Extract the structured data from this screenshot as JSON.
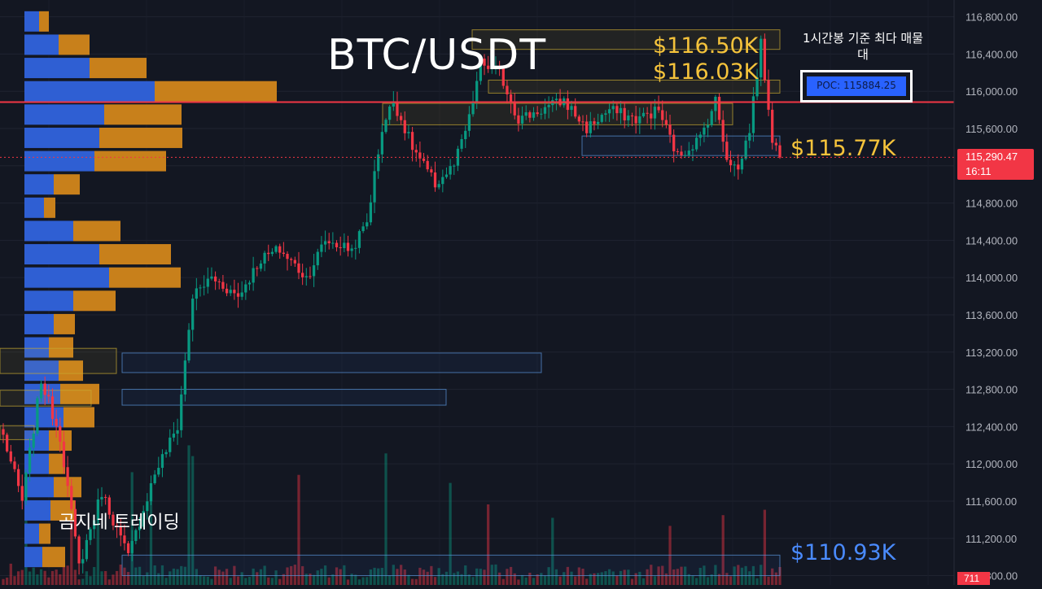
{
  "chart_data": {
    "type": "candlestick",
    "title": "BTC/USDT",
    "timeframe_note": "1시간봉 기준 최다 매물대",
    "y_axis": {
      "ticks": [
        110800,
        111200,
        111600,
        112000,
        112400,
        112800,
        113200,
        113600,
        114000,
        114400,
        114800,
        115200,
        115600,
        116000,
        116400,
        116800
      ],
      "tick_labels": [
        "110,800.00",
        "111,200.00",
        "111,600.00",
        "112,000.00",
        "112,400.00",
        "112,800.00",
        "113,200.00",
        "113,600.00",
        "114,000.00",
        "114,400.00",
        "114,800.00",
        "115,200.00",
        "115,600.00",
        "116,000.00",
        "116,400.00",
        "116,800.00"
      ],
      "range": [
        110700,
        116980
      ]
    },
    "current_price": {
      "label": "115,290.47",
      "value": 115290.47,
      "countdown": "16:11",
      "color": "#f23645"
    },
    "volume_last": "711",
    "poc": {
      "label": "POC: 115884.25",
      "value": 115884.25,
      "color": "#f23645"
    },
    "levels": [
      {
        "label": "$116.50K",
        "value": 116500,
        "color": "#f5c33b"
      },
      {
        "label": "$116.03K",
        "value": 116030,
        "color": "#f5c33b"
      },
      {
        "label": "$115.77K",
        "value": 115770,
        "color": "#f5c33b"
      },
      {
        "label": "$110.93K",
        "value": 110930,
        "color": "#4a8bff"
      }
    ],
    "zones": [
      {
        "kind": "resistance",
        "from": 116450,
        "to": 116660,
        "color": "#f5c33b"
      },
      {
        "kind": "resistance",
        "from": 115980,
        "to": 116120,
        "color": "#f5c33b"
      },
      {
        "kind": "resistance",
        "from": 115640,
        "to": 115870,
        "color": "#f5c33b"
      },
      {
        "kind": "support",
        "from": 115310,
        "to": 115520,
        "color": "#4a8bff"
      },
      {
        "kind": "support",
        "from": 112980,
        "to": 113190,
        "color": "#4a8bff"
      },
      {
        "kind": "support",
        "from": 112630,
        "to": 112800,
        "color": "#4a8bff"
      },
      {
        "kind": "support",
        "from": 110800,
        "to": 111020,
        "color": "#4a8bff"
      },
      {
        "kind": "resistance",
        "from": 112970,
        "to": 113240,
        "color": "#f5c33b"
      },
      {
        "kind": "resistance",
        "from": 112620,
        "to": 112790,
        "color": "#f5c33b"
      },
      {
        "kind": "resistance",
        "from": 112260,
        "to": 112410,
        "color": "#f5c33b"
      }
    ],
    "volume_profile": [
      {
        "price": 116750,
        "up": 18,
        "down": 12
      },
      {
        "price": 116500,
        "up": 42,
        "down": 38
      },
      {
        "price": 116250,
        "up": 80,
        "down": 70
      },
      {
        "price": 116000,
        "up": 160,
        "down": 150
      },
      {
        "price": 115750,
        "up": 98,
        "down": 95
      },
      {
        "price": 115500,
        "up": 92,
        "down": 102
      },
      {
        "price": 115250,
        "up": 86,
        "down": 88
      },
      {
        "price": 115000,
        "up": 36,
        "down": 32
      },
      {
        "price": 114750,
        "up": 24,
        "down": 14
      },
      {
        "price": 114500,
        "up": 60,
        "down": 58
      },
      {
        "price": 114250,
        "up": 92,
        "down": 88
      },
      {
        "price": 114000,
        "up": 104,
        "down": 88
      },
      {
        "price": 113750,
        "up": 60,
        "down": 52
      },
      {
        "price": 113500,
        "up": 36,
        "down": 26
      },
      {
        "price": 113250,
        "up": 30,
        "down": 30
      },
      {
        "price": 113000,
        "up": 42,
        "down": 30
      },
      {
        "price": 112750,
        "up": 44,
        "down": 48
      },
      {
        "price": 112500,
        "up": 48,
        "down": 38
      },
      {
        "price": 112250,
        "up": 30,
        "down": 28
      },
      {
        "price": 112000,
        "up": 30,
        "down": 20
      },
      {
        "price": 111750,
        "up": 36,
        "down": 34
      },
      {
        "price": 111500,
        "up": 32,
        "down": 30
      },
      {
        "price": 111250,
        "up": 18,
        "down": 14
      },
      {
        "price": 111000,
        "up": 22,
        "down": 28
      }
    ],
    "anchors": [
      [
        0,
        112300
      ],
      [
        5,
        111600
      ],
      [
        10,
        112900
      ],
      [
        15,
        112300
      ],
      [
        20,
        110900
      ],
      [
        26,
        111700
      ],
      [
        33,
        111000
      ],
      [
        40,
        111900
      ],
      [
        46,
        112400
      ],
      [
        50,
        113800
      ],
      [
        55,
        114000
      ],
      [
        62,
        113800
      ],
      [
        68,
        114200
      ],
      [
        73,
        114300
      ],
      [
        80,
        114000
      ],
      [
        85,
        114400
      ],
      [
        92,
        114300
      ],
      [
        96,
        114600
      ],
      [
        100,
        115600
      ],
      [
        103,
        115900
      ],
      [
        108,
        115400
      ],
      [
        114,
        115000
      ],
      [
        119,
        115200
      ],
      [
        123,
        115700
      ],
      [
        126,
        116300
      ],
      [
        131,
        116200
      ],
      [
        136,
        115700
      ],
      [
        142,
        115800
      ],
      [
        148,
        115900
      ],
      [
        154,
        115600
      ],
      [
        160,
        115800
      ],
      [
        167,
        115700
      ],
      [
        173,
        115800
      ],
      [
        178,
        115300
      ],
      [
        184,
        115500
      ],
      [
        188,
        115900
      ],
      [
        191,
        115300
      ],
      [
        194,
        115150
      ],
      [
        197,
        115600
      ],
      [
        200,
        116500
      ],
      [
        203,
        115500
      ],
      [
        205,
        115290
      ]
    ],
    "volumes": [
      {
        "i": 6,
        "v": 380
      },
      {
        "i": 18,
        "v": 300
      },
      {
        "i": 25,
        "v": 260
      },
      {
        "i": 34,
        "v": 420
      },
      {
        "i": 39,
        "v": 360
      },
      {
        "i": 49,
        "v": 520
      },
      {
        "i": 50,
        "v": 480
      },
      {
        "i": 78,
        "v": 410
      },
      {
        "i": 101,
        "v": 490
      },
      {
        "i": 118,
        "v": 380
      },
      {
        "i": 128,
        "v": 300
      },
      {
        "i": 145,
        "v": 250
      },
      {
        "i": 176,
        "v": 220
      },
      {
        "i": 190,
        "v": 260
      },
      {
        "i": 201,
        "v": 280
      }
    ]
  }
}
